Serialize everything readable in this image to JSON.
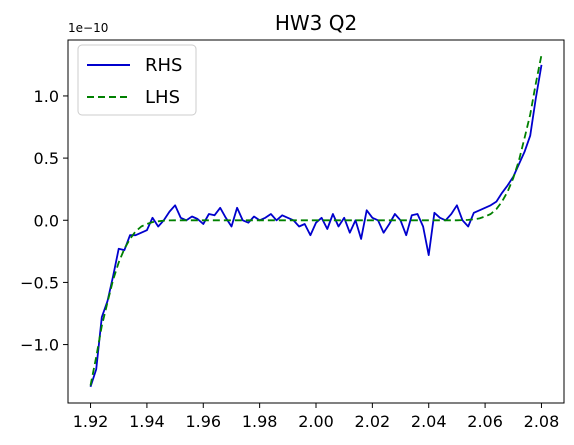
{
  "chart_data": {
    "type": "line",
    "title": "HW3 Q2",
    "xlabel": "",
    "ylabel": "",
    "y_offset_label": "1e−10",
    "xlim": [
      1.912,
      2.088
    ],
    "ylim": [
      -1.47,
      1.45
    ],
    "x_ticks": [
      1.92,
      1.94,
      1.96,
      1.98,
      2.0,
      2.02,
      2.04,
      2.06,
      2.08
    ],
    "x_tick_labels": [
      "1.92",
      "1.94",
      "1.96",
      "1.98",
      "2.00",
      "2.02",
      "2.04",
      "2.06",
      "2.08"
    ],
    "y_ticks": [
      -1.0,
      -0.5,
      0.0,
      0.5,
      1.0
    ],
    "y_tick_labels": [
      "−1.0",
      "−0.5",
      "0.0",
      "0.5",
      "1.0"
    ],
    "grid": false,
    "legend_position": "top-left",
    "series": [
      {
        "name": "RHS",
        "color": "#0000cd",
        "style": "solid",
        "x": [
          1.92,
          1.922,
          1.924,
          1.926,
          1.928,
          1.93,
          1.932,
          1.934,
          1.936,
          1.938,
          1.94,
          1.942,
          1.944,
          1.946,
          1.948,
          1.95,
          1.952,
          1.954,
          1.956,
          1.958,
          1.96,
          1.962,
          1.964,
          1.966,
          1.968,
          1.97,
          1.972,
          1.974,
          1.976,
          1.978,
          1.98,
          1.982,
          1.984,
          1.986,
          1.988,
          1.99,
          1.992,
          1.994,
          1.996,
          1.998,
          2.0,
          2.002,
          2.004,
          2.006,
          2.008,
          2.01,
          2.012,
          2.014,
          2.016,
          2.018,
          2.02,
          2.022,
          2.024,
          2.026,
          2.028,
          2.03,
          2.032,
          2.034,
          2.036,
          2.038,
          2.04,
          2.042,
          2.044,
          2.046,
          2.048,
          2.05,
          2.052,
          2.054,
          2.056,
          2.058,
          2.06,
          2.062,
          2.064,
          2.066,
          2.068,
          2.07,
          2.072,
          2.074,
          2.076,
          2.078,
          2.08
        ],
        "y": [
          -1.34,
          -1.2,
          -0.78,
          -0.65,
          -0.45,
          -0.23,
          -0.24,
          -0.12,
          -0.12,
          -0.1,
          -0.08,
          0.02,
          -0.05,
          0.0,
          0.07,
          0.12,
          0.02,
          0.0,
          0.03,
          0.01,
          -0.03,
          0.05,
          0.04,
          0.1,
          0.02,
          -0.05,
          0.1,
          0.0,
          -0.02,
          0.03,
          0.0,
          0.02,
          0.05,
          0.0,
          0.04,
          0.02,
          0.0,
          -0.05,
          -0.03,
          -0.12,
          -0.02,
          0.02,
          -0.07,
          0.05,
          -0.05,
          0.02,
          -0.1,
          0.0,
          -0.15,
          0.08,
          0.02,
          0.0,
          -0.1,
          -0.03,
          0.05,
          0.0,
          -0.12,
          0.04,
          0.05,
          -0.05,
          -0.28,
          0.06,
          0.02,
          0.0,
          0.05,
          0.12,
          0.0,
          -0.05,
          0.06,
          0.08,
          0.1,
          0.12,
          0.15,
          0.22,
          0.28,
          0.35,
          0.45,
          0.55,
          0.68,
          0.98,
          1.25
        ]
      },
      {
        "name": "LHS",
        "color": "#008000",
        "style": "dashed",
        "x": [
          1.92,
          1.922,
          1.924,
          1.926,
          1.928,
          1.93,
          1.932,
          1.934,
          1.936,
          1.938,
          1.94,
          1.942,
          1.944,
          1.946,
          1.948,
          1.95,
          2.05,
          2.052,
          2.054,
          2.056,
          2.058,
          2.06,
          2.062,
          2.064,
          2.066,
          2.068,
          2.07,
          2.072,
          2.074,
          2.076,
          2.078,
          2.08
        ],
        "y": [
          -1.33,
          -1.1,
          -0.85,
          -0.66,
          -0.48,
          -0.34,
          -0.23,
          -0.15,
          -0.09,
          -0.05,
          -0.03,
          -0.015,
          -0.008,
          -0.003,
          -0.001,
          0.0,
          0.0,
          0.001,
          0.003,
          0.008,
          0.015,
          0.03,
          0.05,
          0.09,
          0.15,
          0.23,
          0.34,
          0.48,
          0.66,
          0.85,
          1.1,
          1.33
        ]
      }
    ]
  }
}
